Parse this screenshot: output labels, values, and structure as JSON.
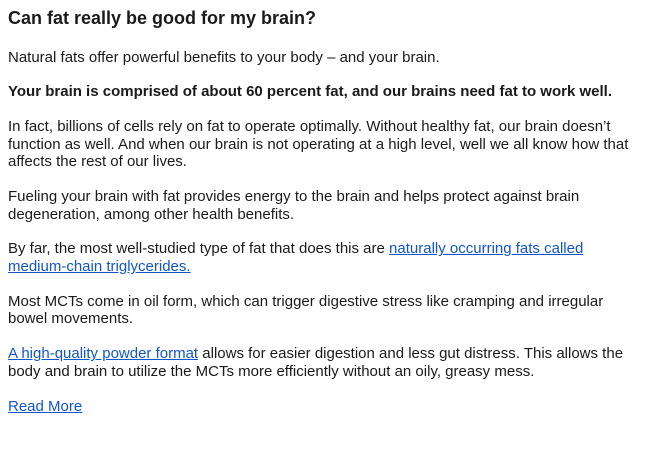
{
  "colors": {
    "background": "#ffffff",
    "text": "#1a1a1a",
    "link": "#1155cc"
  },
  "article": {
    "heading": "Can fat really be good for my brain?",
    "paragraphs": [
      {
        "style": "normal",
        "segments": [
          {
            "type": "text",
            "text": "Natural fats offer powerful benefits to your body – and your brain."
          }
        ]
      },
      {
        "style": "bold",
        "segments": [
          {
            "type": "text",
            "text": "Your brain is comprised of about 60 percent fat, and our brains need fat to work well."
          }
        ]
      },
      {
        "style": "normal",
        "segments": [
          {
            "type": "text",
            "text": "In fact, billions of cells rely on fat to operate optimally. Without healthy fat, our brain doesn’t function as well. And when our brain is not operating at a high level, well we all know how that affects the rest of our lives."
          }
        ]
      },
      {
        "style": "normal",
        "segments": [
          {
            "type": "text",
            "text": "Fueling your brain with fat provides energy to the brain and helps protect against brain degeneration, among other health benefits."
          }
        ]
      },
      {
        "style": "normal",
        "segments": [
          {
            "type": "text",
            "text": "By far, the most well-studied type of fat that does this are "
          },
          {
            "type": "link",
            "text": "naturally occurring fats called medium-chain triglycerides."
          }
        ]
      },
      {
        "style": "normal",
        "segments": [
          {
            "type": "text",
            "text": "Most MCTs come in oil form, which can trigger digestive stress like cramping and irregular bowel movements."
          }
        ]
      },
      {
        "style": "normal",
        "segments": [
          {
            "type": "link",
            "text": "A high-quality powder format"
          },
          {
            "type": "text",
            "text": " allows for easier digestion and less gut distress. This allows the body and brain to utilize the MCTs more efficiently without an oily, greasy mess."
          }
        ]
      }
    ],
    "read_more_label": "Read More"
  }
}
